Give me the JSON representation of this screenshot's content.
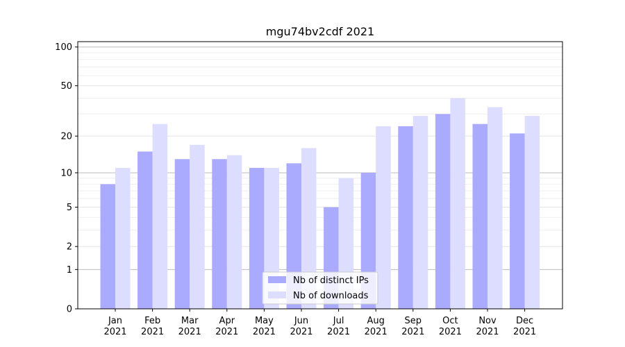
{
  "chart_data": {
    "type": "bar",
    "title": "mgu74bv2cdf 2021",
    "xlabel": "",
    "ylabel": "",
    "yscale": "symlog",
    "ylim": [
      0,
      110
    ],
    "yticks": [
      0,
      1,
      2,
      5,
      10,
      20,
      50,
      100
    ],
    "grid": "y",
    "legend_position": "lower-center",
    "categories": [
      "Jan 2021",
      "Feb 2021",
      "Mar 2021",
      "Apr 2021",
      "May 2021",
      "Jun 2021",
      "Jul 2021",
      "Aug 2021",
      "Sep 2021",
      "Oct 2021",
      "Nov 2021",
      "Dec 2021"
    ],
    "category_lines": [
      [
        "Jan",
        "2021"
      ],
      [
        "Feb",
        "2021"
      ],
      [
        "Mar",
        "2021"
      ],
      [
        "Apr",
        "2021"
      ],
      [
        "May",
        "2021"
      ],
      [
        "Jun",
        "2021"
      ],
      [
        "Jul",
        "2021"
      ],
      [
        "Aug",
        "2021"
      ],
      [
        "Sep",
        "2021"
      ],
      [
        "Oct",
        "2021"
      ],
      [
        "Nov",
        "2021"
      ],
      [
        "Dec",
        "2021"
      ]
    ],
    "series": [
      {
        "name": "Nb of distinct IPs",
        "color": "#aaaaff",
        "values": [
          8,
          15,
          13,
          13,
          11,
          12,
          5,
          10,
          24,
          30,
          25,
          21
        ]
      },
      {
        "name": "Nb of downloads",
        "color": "#ddddff",
        "values": [
          11,
          25,
          17,
          14,
          11,
          16,
          9,
          24,
          29,
          40,
          34,
          29
        ]
      }
    ]
  }
}
